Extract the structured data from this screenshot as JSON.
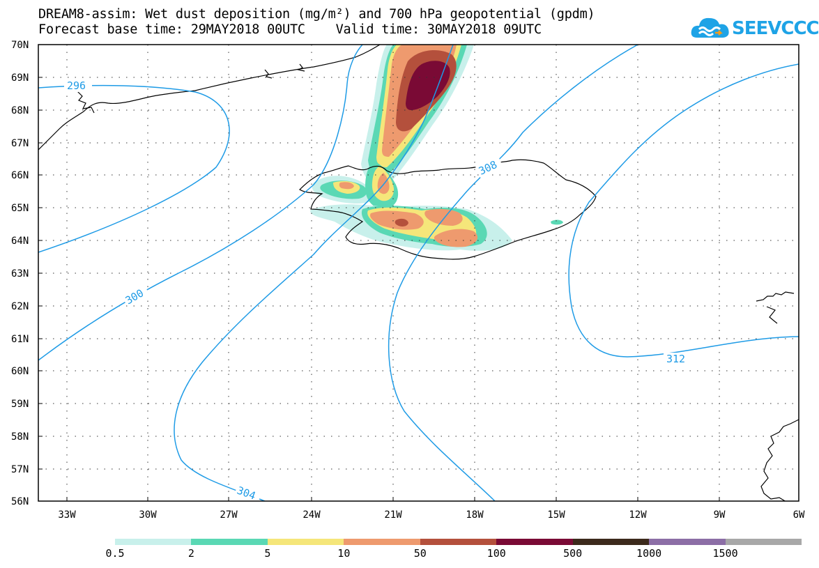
{
  "title": {
    "line1": "DREAM8-assim: Wet dust deposition (mg/m²) and 700 hPa geopotential (gpdm)",
    "line2": "Forecast base time: 29MAY2018 00UTC    Valid time: 30MAY2018 09UTC"
  },
  "logo": {
    "text": "SEEVCCC",
    "icon": "cloud-logo-icon",
    "color": "#1ea3e6"
  },
  "axes": {
    "lat_labels": [
      "70N",
      "69N",
      "68N",
      "67N",
      "66N",
      "65N",
      "64N",
      "63N",
      "62N",
      "61N",
      "60N",
      "59N",
      "58N",
      "57N",
      "56N"
    ],
    "lon_labels": [
      "33W",
      "30W",
      "27W",
      "24W",
      "21W",
      "18W",
      "15W",
      "12W",
      "9W",
      "6W"
    ]
  },
  "contours": {
    "color": "#1e9be6",
    "labels": [
      "296",
      "300",
      "304",
      "308",
      "312"
    ]
  },
  "legend": {
    "colors": [
      "#c8f0eb",
      "#5ad8b4",
      "#f5e67a",
      "#ee9a6e",
      "#b4503c",
      "#7a0a35",
      "#3c2a1c",
      "#8c6ea6",
      "#a8a8a8"
    ],
    "labels": [
      "0.5",
      "2",
      "5",
      "10",
      "50",
      "100",
      "500",
      "1000",
      "1500"
    ]
  }
}
